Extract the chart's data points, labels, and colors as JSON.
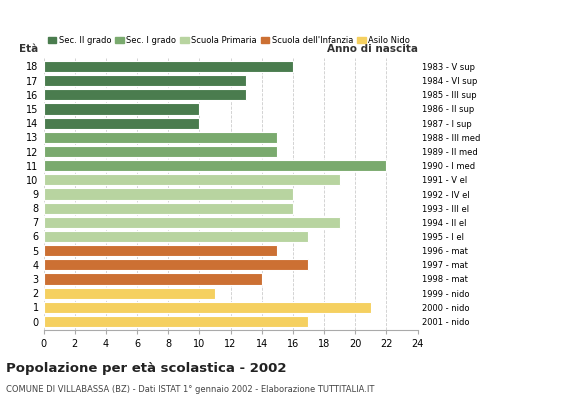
{
  "ages": [
    18,
    17,
    16,
    15,
    14,
    13,
    12,
    11,
    10,
    9,
    8,
    7,
    6,
    5,
    4,
    3,
    2,
    1,
    0
  ],
  "values": [
    16,
    13,
    13,
    10,
    10,
    15,
    15,
    22,
    19,
    16,
    16,
    19,
    17,
    15,
    17,
    14,
    11,
    21,
    17
  ],
  "right_labels": [
    "1983 - V sup",
    "1984 - VI sup",
    "1985 - III sup",
    "1986 - II sup",
    "1987 - I sup",
    "1988 - III med",
    "1989 - II med",
    "1990 - I med",
    "1991 - V el",
    "1992 - IV el",
    "1993 - III el",
    "1994 - II el",
    "1995 - I el",
    "1996 - mat",
    "1997 - mat",
    "1998 - mat",
    "1999 - nido",
    "2000 - nido",
    "2001 - nido"
  ],
  "colors": [
    "#4a7c4e",
    "#4a7c4e",
    "#4a7c4e",
    "#4a7c4e",
    "#4a7c4e",
    "#7aaa6e",
    "#7aaa6e",
    "#7aaa6e",
    "#b8d4a0",
    "#b8d4a0",
    "#b8d4a0",
    "#b8d4a0",
    "#b8d4a0",
    "#cc7033",
    "#cc7033",
    "#cc7033",
    "#f5d060",
    "#f5d060",
    "#f5d060"
  ],
  "legend_labels": [
    "Sec. II grado",
    "Sec. I grado",
    "Scuola Primaria",
    "Scuola dell'Infanzia",
    "Asilo Nido"
  ],
  "legend_colors": [
    "#4a7c4e",
    "#7aaa6e",
    "#b8d4a0",
    "#cc7033",
    "#f5d060"
  ],
  "title": "Popolazione per età scolastica - 2002",
  "subtitle": "COMUNE DI VILLABASSA (BZ) - Dati ISTAT 1° gennaio 2002 - Elaborazione TUTTITALIA.IT",
  "xlabel_left": "Età",
  "xlabel_right": "Anno di nascita",
  "xlim": [
    0,
    24
  ],
  "xticks": [
    0,
    2,
    4,
    6,
    8,
    10,
    12,
    14,
    16,
    18,
    20,
    22,
    24
  ],
  "background_color": "#ffffff"
}
